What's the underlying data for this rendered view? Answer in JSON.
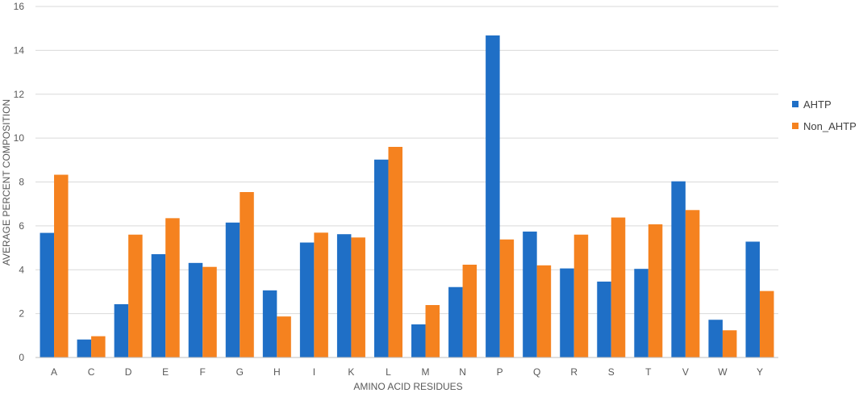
{
  "chart_data": {
    "type": "bar",
    "categories": [
      "A",
      "C",
      "D",
      "E",
      "F",
      "G",
      "H",
      "I",
      "K",
      "L",
      "M",
      "N",
      "P",
      "Q",
      "R",
      "S",
      "T",
      "V",
      "W",
      "Y"
    ],
    "series": [
      {
        "name": "AHTP",
        "color": "#1f6fc6",
        "values": [
          5.68,
          0.82,
          2.43,
          4.71,
          4.31,
          6.15,
          3.06,
          5.24,
          5.62,
          9.02,
          1.51,
          3.21,
          14.68,
          5.74,
          4.06,
          3.46,
          4.04,
          8.03,
          1.72,
          5.28
        ]
      },
      {
        "name": "Non_AHTP",
        "color": "#f5821f",
        "values": [
          8.33,
          0.97,
          5.6,
          6.35,
          4.13,
          7.54,
          1.87,
          5.69,
          5.47,
          9.6,
          2.39,
          4.23,
          5.38,
          4.2,
          5.6,
          6.38,
          6.07,
          6.72,
          1.24,
          3.03
        ]
      }
    ],
    "xlabel": "AMINO ACID RESIDUES",
    "ylabel": "AVERAGE PERCENT COMPOSITION",
    "ylim": [
      0,
      16
    ],
    "yticks": [
      "0",
      "2",
      "4",
      "6",
      "8",
      "10",
      "12",
      "14",
      "16"
    ],
    "grid": true,
    "legend_position": "right"
  }
}
